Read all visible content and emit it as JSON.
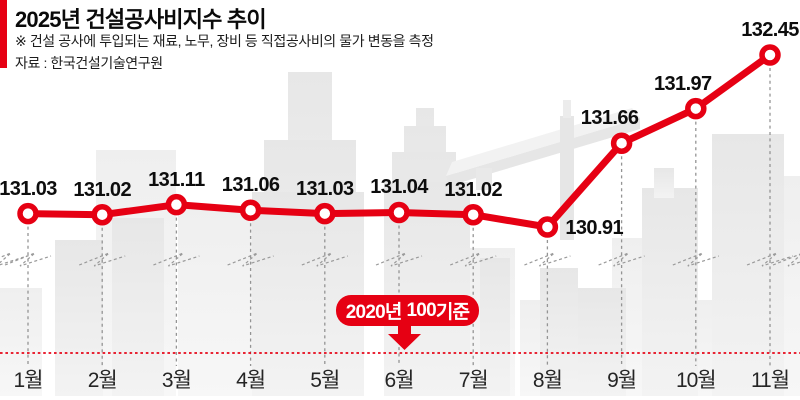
{
  "header": {
    "title": "2025년 건설공사비지수 추이",
    "note": "※ 건설 공사에 투입되는 재료, 노무, 장비 등 직접공사비의 물가 변동을 측정",
    "source": "자료 : 한국건설기술연구원"
  },
  "badge": {
    "prefix": "2020년",
    "strong": "100",
    "suffix": "기준"
  },
  "colors": {
    "accent": "#e60013",
    "grid_dash": "#949494",
    "label_text": "#0d0d0d",
    "skyline": "#e9e9e9",
    "skyline_light": "#f1f1f1"
  },
  "chart_data": {
    "type": "line",
    "title": "2025년 건설공사비지수 추이",
    "categories": [
      "1월",
      "2월",
      "3월",
      "4월",
      "5월",
      "6월",
      "7월",
      "8월",
      "9월",
      "10월",
      "11월"
    ],
    "series": [
      {
        "name": "건설공사비지수",
        "values": [
          131.03,
          131.02,
          131.11,
          131.06,
          131.03,
          131.04,
          131.02,
          130.91,
          131.66,
          131.97,
          132.45
        ]
      }
    ],
    "value_label_decimals": 2,
    "baseline_note": "2020년 100기준",
    "baseline_value": 100,
    "axis_break": true,
    "ylim_visible": [
      130.91,
      132.45
    ],
    "xlabel": "",
    "ylabel": "",
    "legend": "none",
    "grid": "vertical-dashed",
    "marker": "open-circle"
  }
}
